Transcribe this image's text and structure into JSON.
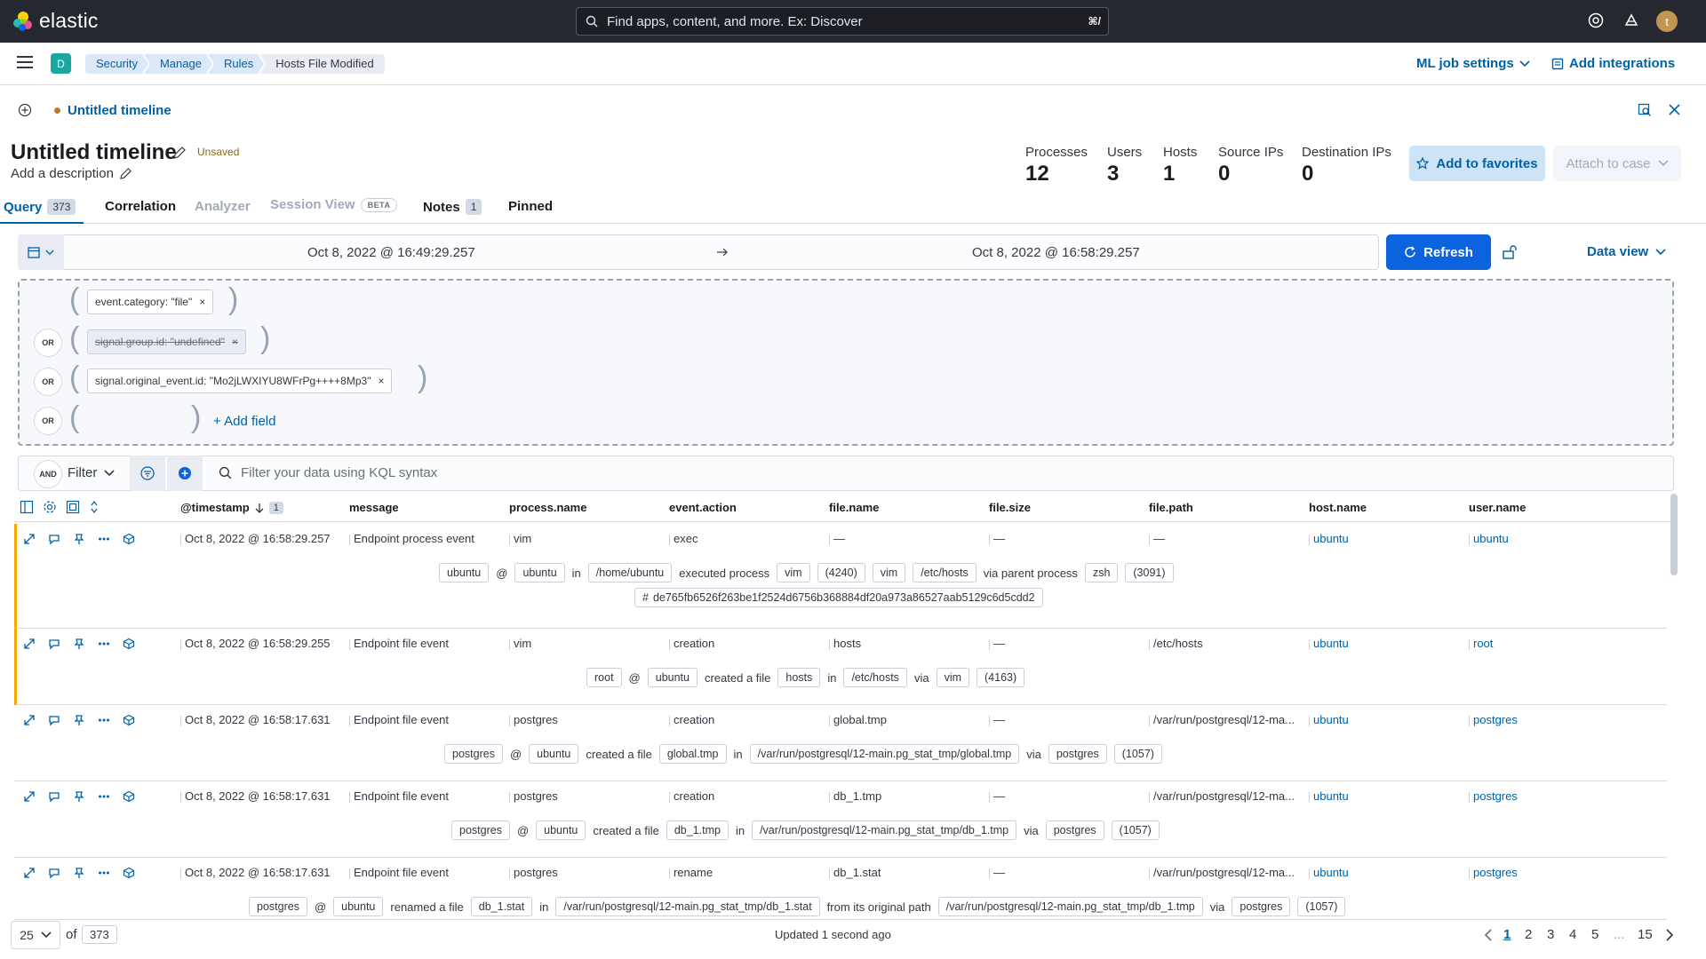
{
  "header": {
    "brand": "elastic",
    "search_placeholder": "Find apps, content, and more. Ex: Discover",
    "search_shortcut": "⌘/",
    "avatar_initial": "t"
  },
  "subheader": {
    "space_initial": "D",
    "breadcrumbs": [
      "Security",
      "Manage",
      "Rules",
      "Hosts File Modified"
    ],
    "ml_job_settings": "ML job settings",
    "add_integrations": "Add integrations"
  },
  "timeline": {
    "tab_name": "Untitled timeline",
    "title": "Untitled timeline",
    "status": "Unsaved",
    "description": "Add a description",
    "stats": [
      {
        "label": "Processes",
        "value": "12"
      },
      {
        "label": "Users",
        "value": "3"
      },
      {
        "label": "Hosts",
        "value": "1"
      },
      {
        "label": "Source IPs",
        "value": "0"
      },
      {
        "label": "Destination IPs",
        "value": "0"
      }
    ],
    "add_to_favorites": "Add to favorites",
    "attach_to_case": "Attach to case"
  },
  "tabs": [
    {
      "label": "Query",
      "badge": "373"
    },
    {
      "label": "Correlation"
    },
    {
      "label": "Analyzer"
    },
    {
      "label": "Session View",
      "badge": "BETA"
    },
    {
      "label": "Notes",
      "badge": "1"
    },
    {
      "label": "Pinned"
    }
  ],
  "datepicker": {
    "start": "Oct 8, 2022 @ 16:49:29.257",
    "end": "Oct 8, 2022 @ 16:58:29.257",
    "refresh": "Refresh",
    "data_view": "Data view"
  },
  "query": {
    "providers": [
      "event.category: \"file\"",
      "signal.group.id: \"undefined\"",
      "signal.original_event.id: \"Mo2jLWXIYU8WFrPg++++8Mp3\""
    ],
    "or_label": "OR",
    "add_field": "+ Add field"
  },
  "filter": {
    "and_label": "AND",
    "label": "Filter",
    "kql_placeholder": "Filter your data using KQL syntax"
  },
  "table": {
    "columns": [
      "@timestamp",
      "message",
      "process.name",
      "event.action",
      "file.name",
      "file.size",
      "file.path",
      "host.name",
      "user.name"
    ],
    "sort_count": "1",
    "rows": [
      {
        "timestamp": "Oct 8, 2022 @ 16:58:29.257",
        "message": "Endpoint process event",
        "process": "vim",
        "action": "exec",
        "file_name": "—",
        "file_size": "—",
        "file_path": "—",
        "host": "ubuntu",
        "user": "ubuntu",
        "detail": [
          "ubuntu",
          "@",
          "ubuntu",
          "in",
          "/home/ubuntu",
          "executed process",
          "vim",
          "(4240)",
          "vim",
          "/etc/hosts",
          "via parent process",
          "zsh",
          "(3091)"
        ],
        "hash": "de765fb6526f263be1f2524d6756b368884df20a973a86527aab5129c6d5cdd2"
      },
      {
        "timestamp": "Oct 8, 2022 @ 16:58:29.255",
        "message": "Endpoint file event",
        "process": "vim",
        "action": "creation",
        "file_name": "hosts",
        "file_size": "—",
        "file_path": "/etc/hosts",
        "host": "ubuntu",
        "user": "root",
        "detail": [
          "root",
          "@",
          "ubuntu",
          "created a file",
          "hosts",
          "in",
          "/etc/hosts",
          "via",
          "vim",
          "(4163)"
        ]
      },
      {
        "timestamp": "Oct 8, 2022 @ 16:58:17.631",
        "message": "Endpoint file event",
        "process": "postgres",
        "action": "creation",
        "file_name": "global.tmp",
        "file_size": "—",
        "file_path": "/var/run/postgresql/12-ma...",
        "host": "ubuntu",
        "user": "postgres",
        "detail": [
          "postgres",
          "@",
          "ubuntu",
          "created a file",
          "global.tmp",
          "in",
          "/var/run/postgresql/12-main.pg_stat_tmp/global.tmp",
          "via",
          "postgres",
          "(1057)"
        ]
      },
      {
        "timestamp": "Oct 8, 2022 @ 16:58:17.631",
        "message": "Endpoint file event",
        "process": "postgres",
        "action": "creation",
        "file_name": "db_1.tmp",
        "file_size": "—",
        "file_path": "/var/run/postgresql/12-ma...",
        "host": "ubuntu",
        "user": "postgres",
        "detail": [
          "postgres",
          "@",
          "ubuntu",
          "created a file",
          "db_1.tmp",
          "in",
          "/var/run/postgresql/12-main.pg_stat_tmp/db_1.tmp",
          "via",
          "postgres",
          "(1057)"
        ]
      },
      {
        "timestamp": "Oct 8, 2022 @ 16:58:17.631",
        "message": "Endpoint file event",
        "process": "postgres",
        "action": "rename",
        "file_name": "db_1.stat",
        "file_size": "—",
        "file_path": "/var/run/postgresql/12-ma...",
        "host": "ubuntu",
        "user": "postgres",
        "detail": [
          "postgres",
          "@",
          "ubuntu",
          "renamed a file",
          "db_1.stat",
          "in",
          "/var/run/postgresql/12-main.pg_stat_tmp/db_1.stat",
          "from its original path",
          "/var/run/postgresql/12-main.pg_stat_tmp/db_1.tmp",
          "via",
          "postgres",
          "(1057)"
        ]
      }
    ]
  },
  "footer": {
    "page_size": "25",
    "of_label": "of",
    "total": "373",
    "updated": "Updated 1 second ago",
    "pages": [
      "1",
      "2",
      "3",
      "4",
      "5",
      "...",
      "15"
    ]
  }
}
